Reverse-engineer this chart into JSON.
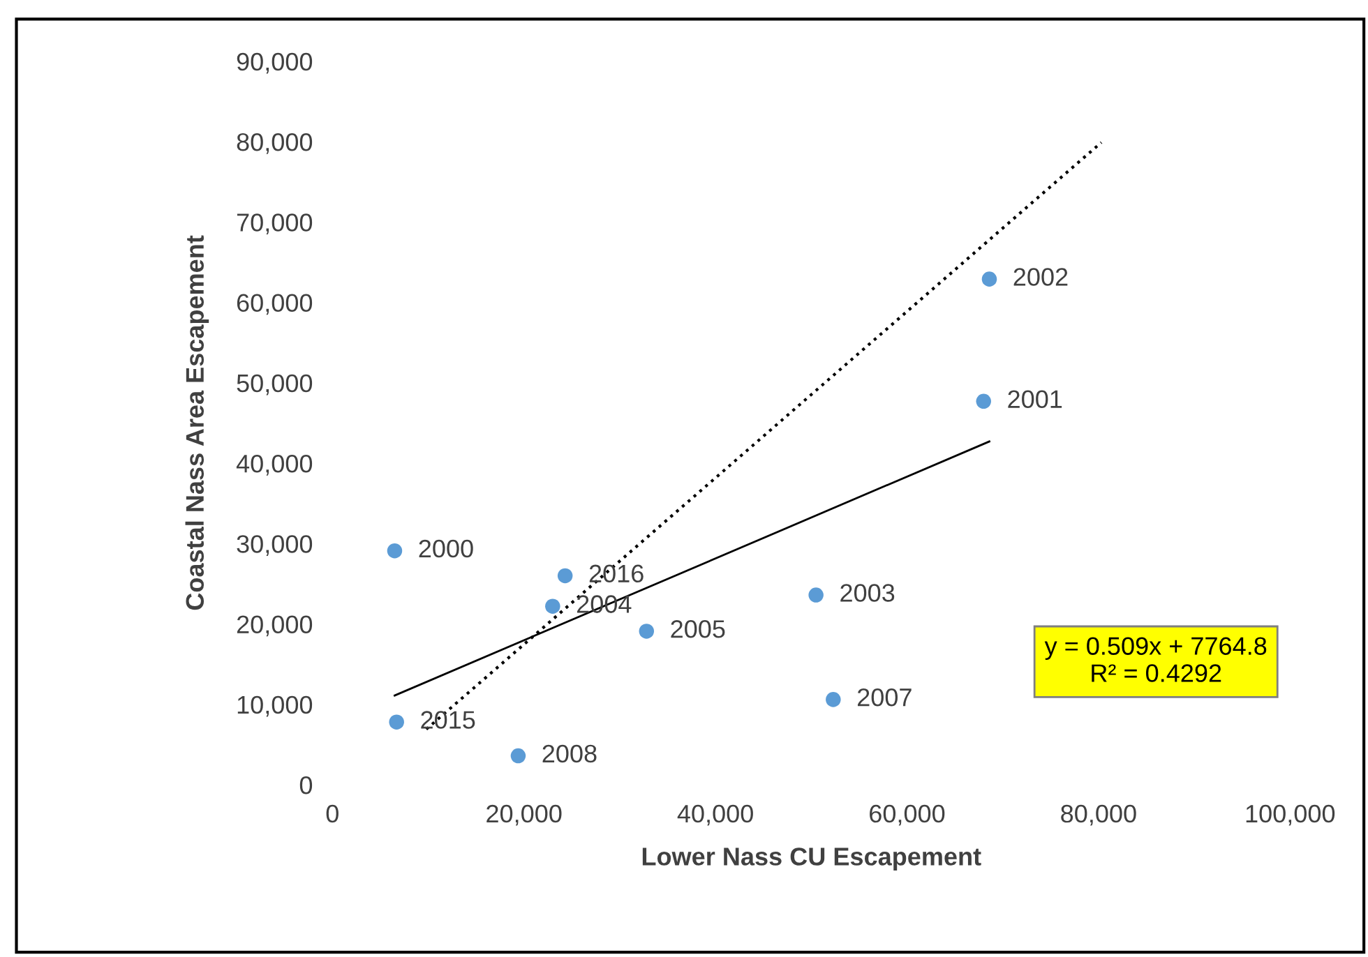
{
  "chart_data": {
    "type": "scatter",
    "xlabel": "Lower Nass CU Escapement",
    "ylabel": "Coastal Nass Area Escapement",
    "xlim": [
      0,
      100000
    ],
    "xticks": [
      {
        "value": 0,
        "label": "0"
      },
      {
        "value": 20000,
        "label": "20,000"
      },
      {
        "value": 40000,
        "label": "40,000"
      },
      {
        "value": 60000,
        "label": "60,000"
      },
      {
        "value": 80000,
        "label": "80,000"
      },
      {
        "value": 100000,
        "label": "100,000"
      }
    ],
    "ylim": [
      0,
      90000
    ],
    "yticks": [
      {
        "value": 0,
        "label": "0"
      },
      {
        "value": 10000,
        "label": "10,000"
      },
      {
        "value": 20000,
        "label": "20,000"
      },
      {
        "value": 30000,
        "label": "30,000"
      },
      {
        "value": 40000,
        "label": "40,000"
      },
      {
        "value": 50000,
        "label": "50,000"
      },
      {
        "value": 60000,
        "label": "60,000"
      },
      {
        "value": 70000,
        "label": "70,000"
      },
      {
        "value": 80000,
        "label": "80,000"
      },
      {
        "value": 90000,
        "label": "90,000"
      }
    ],
    "series": [
      {
        "color": "#5b9bd5",
        "marker": "circle",
        "x": [
          6500,
          68600,
          68000,
          24300,
          23000,
          32800,
          50500,
          52300,
          6700,
          19400
        ],
        "values": [
          29100,
          62900,
          47700,
          26000,
          22200,
          19100,
          23600,
          10600,
          7800,
          3600
        ]
      },
      {
        "type": "line",
        "color": "#000000",
        "marker": "none",
        "line_style": "solid",
        "x": [
          6500,
          68600
        ],
        "values": [
          11100,
          42700
        ]
      },
      {
        "type": "line",
        "color": "#000000",
        "marker": "none",
        "line_style": "dotted",
        "x": [
          9800,
          80300
        ],
        "values": [
          6900,
          79900
        ]
      }
    ],
    "annotations": [
      {
        "text": "2000",
        "x": 6500,
        "y": 29100
      },
      {
        "text": "2002",
        "x": 68600,
        "y": 62900
      },
      {
        "text": "2001",
        "x": 68000,
        "y": 47700
      },
      {
        "text": "2016",
        "x": 24300,
        "y": 26000
      },
      {
        "text": "2004",
        "x": 23000,
        "y": 22200
      },
      {
        "text": "2005",
        "x": 32800,
        "y": 19100
      },
      {
        "text": "2003",
        "x": 50500,
        "y": 23600
      },
      {
        "text": "2007",
        "x": 52300,
        "y": 10600
      },
      {
        "text": "2015",
        "x": 6700,
        "y": 7800
      },
      {
        "text": "2008",
        "x": 19400,
        "y": 3600
      },
      "y = 0.509x + 7764.8\nR² = 0.4292"
    ]
  }
}
